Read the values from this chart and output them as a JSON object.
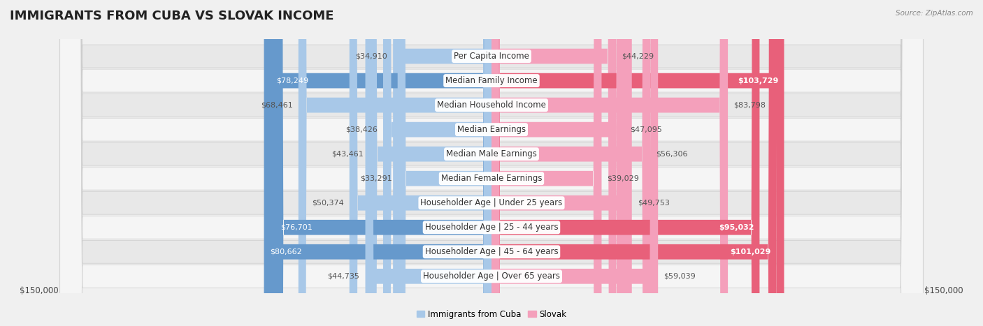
{
  "title": "IMMIGRANTS FROM CUBA VS SLOVAK INCOME",
  "source": "Source: ZipAtlas.com",
  "categories": [
    "Per Capita Income",
    "Median Family Income",
    "Median Household Income",
    "Median Earnings",
    "Median Male Earnings",
    "Median Female Earnings",
    "Householder Age | Under 25 years",
    "Householder Age | 25 - 44 years",
    "Householder Age | 45 - 64 years",
    "Householder Age | Over 65 years"
  ],
  "cuba_values": [
    34910,
    78249,
    68461,
    38426,
    43461,
    33291,
    50374,
    76701,
    80662,
    44735
  ],
  "slovak_values": [
    44229,
    103729,
    83798,
    47095,
    56306,
    39029,
    49753,
    95032,
    101029,
    59039
  ],
  "cuba_color_light": "#A8C8E8",
  "cuba_color_dark": "#6699CC",
  "slovak_color_light": "#F4A0BB",
  "slovak_color_dark": "#E8607A",
  "max_value": 150000,
  "x_axis_label_left": "$150,000",
  "x_axis_label_right": "$150,000",
  "legend_cuba": "Immigrants from Cuba",
  "legend_slovak": "Slovak",
  "bg_color": "#f0f0f0",
  "row_bg_color": "#e8e8e8",
  "row_bg_alt": "#f5f5f5",
  "title_fontsize": 13,
  "label_fontsize": 8.5,
  "value_fontsize": 8
}
